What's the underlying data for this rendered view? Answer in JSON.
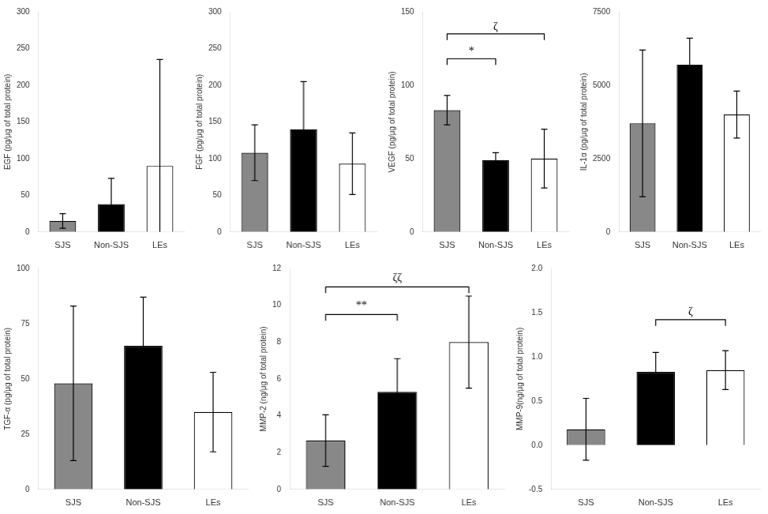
{
  "chart_data": [
    {
      "type": "bar",
      "categories": [
        "SJS",
        "Non-SJS",
        "LEs"
      ],
      "values": [
        15,
        38,
        90
      ],
      "errors": [
        10,
        35,
        145
      ],
      "colors": [
        "#888888",
        "#000000",
        "#ffffff"
      ],
      "ylabel": "EGF (pg/μg of total protein)",
      "ylim": [
        0,
        300
      ],
      "yticks": [
        0,
        50,
        100,
        150,
        200,
        250,
        300
      ],
      "grid": false,
      "annotations": []
    },
    {
      "type": "bar",
      "categories": [
        "SJS",
        "Non-SJS",
        "LEs"
      ],
      "values": [
        108,
        140,
        93
      ],
      "errors": [
        38,
        65,
        42
      ],
      "colors": [
        "#888888",
        "#000000",
        "#ffffff"
      ],
      "ylabel": "FGF (pg/μg of total protein)",
      "ylim": [
        0,
        300
      ],
      "yticks": [
        0,
        50,
        100,
        150,
        200,
        250,
        300
      ],
      "grid": false,
      "annotations": []
    },
    {
      "type": "bar",
      "categories": [
        "SJS",
        "Non-SJS",
        "LEs"
      ],
      "values": [
        83,
        49,
        50
      ],
      "errors": [
        10,
        5,
        20
      ],
      "colors": [
        "#888888",
        "#000000",
        "#ffffff"
      ],
      "ylabel": "VEGF (pg/μg of total protein)",
      "ylim": [
        0,
        150
      ],
      "yticks": [
        0,
        50,
        100,
        150
      ],
      "grid": false,
      "annotations": [
        {
          "text": "ζ",
          "x1": "SJS",
          "x2": "LEs",
          "y": 135,
          "text_y": 136
        },
        {
          "text": "*",
          "x1": "SJS",
          "x2": "Non-SJS",
          "y": 118,
          "text_y": 119
        }
      ]
    },
    {
      "type": "bar",
      "categories": [
        "SJS",
        "Non-SJS",
        "LEs"
      ],
      "values": [
        3700,
        5700,
        4000
      ],
      "errors": [
        2500,
        900,
        800
      ],
      "colors": [
        "#888888",
        "#000000",
        "#ffffff"
      ],
      "ylabel": "IL-1α (pg/μg of total protein)",
      "ylim": [
        0,
        7500
      ],
      "yticks": [
        0,
        2500,
        5000,
        7500
      ],
      "grid": false,
      "annotations": []
    },
    {
      "type": "bar",
      "categories": [
        "SJS",
        "Non-SJS",
        "LEs"
      ],
      "values": [
        48,
        65,
        35
      ],
      "errors": [
        35,
        22,
        18
      ],
      "colors": [
        "#888888",
        "#000000",
        "#ffffff"
      ],
      "ylabel": "TGF-α (pg/μg of total protein)",
      "ylim": [
        0,
        100
      ],
      "yticks": [
        0,
        25,
        50,
        75,
        100
      ],
      "grid": false,
      "annotations": []
    },
    {
      "type": "bar",
      "categories": [
        "SJS",
        "Non-SJS",
        "LEs"
      ],
      "values": [
        2.65,
        5.3,
        8.0
      ],
      "errors": [
        1.4,
        1.8,
        2.5
      ],
      "colors": [
        "#888888",
        "#000000",
        "#ffffff"
      ],
      "ylabel": "MMP-2 (ng/μg of total protein)",
      "ylim": [
        0,
        12
      ],
      "yticks": [
        0,
        2,
        4,
        6,
        8,
        10,
        12
      ],
      "grid": false,
      "annotations": [
        {
          "text": "ζζ",
          "x1": "SJS",
          "x2": "LEs",
          "y": 11.0,
          "text_y": 11.15
        },
        {
          "text": "**",
          "x1": "SJS",
          "x2": "Non-SJS",
          "y": 9.5,
          "text_y": 9.65
        }
      ]
    },
    {
      "type": "bar",
      "categories": [
        "SJS",
        "Non-SJS",
        "LEs"
      ],
      "values": [
        0.18,
        0.83,
        0.85
      ],
      "errors": [
        0.35,
        0.22,
        0.22
      ],
      "colors": [
        "#888888",
        "#000000",
        "#ffffff"
      ],
      "ylabel": "MMP-9(ng/μg of total protein)",
      "ylim": [
        -0.5,
        2
      ],
      "yticks": [
        -0.5,
        {
          "value": 0,
          "label": "0.0"
        },
        0.5,
        {
          "value": 1,
          "label": "1.0"
        },
        1.5,
        {
          "value": 2,
          "label": "2.0"
        }
      ],
      "grid": false,
      "annotations": [
        {
          "text": "ζ",
          "x1": "Non-SJS",
          "x2": "LEs",
          "y": 1.42,
          "text_y": 1.44
        }
      ]
    }
  ]
}
